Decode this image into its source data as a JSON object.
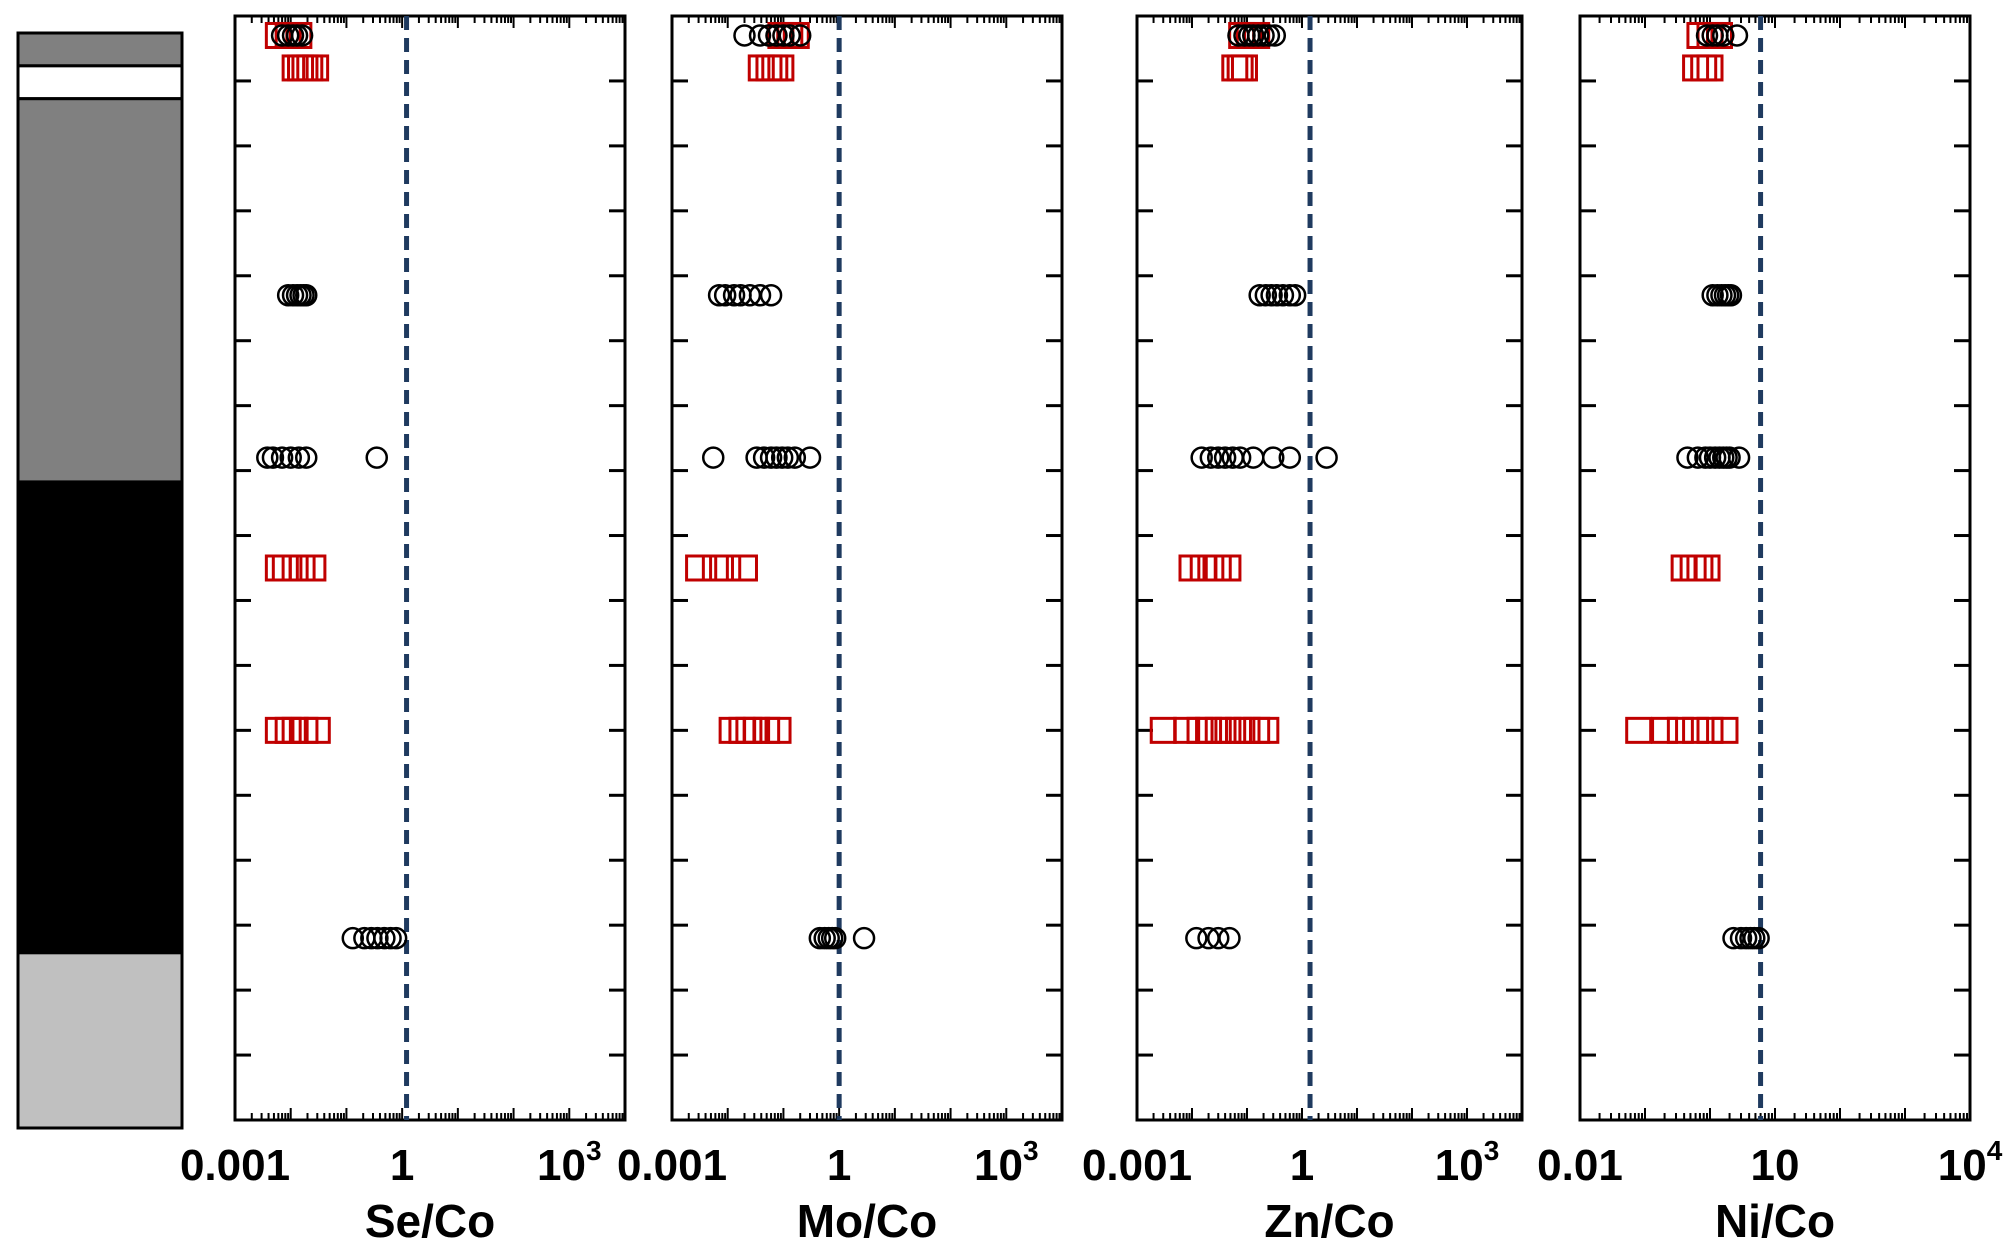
{
  "colors": {
    "circle_stroke": "#000000",
    "square_stroke": "#c00000",
    "reference_line": "#1f3a5f",
    "column_dark_gray": "#808080",
    "column_black": "#000000",
    "column_light_gray": "#c0c0c0",
    "column_white": "#ffffff"
  },
  "stratigraphic_column": {
    "layers": [
      {
        "fill": "#808080",
        "top": 0.0,
        "bottom": 0.03
      },
      {
        "fill": "#ffffff",
        "top": 0.03,
        "bottom": 0.06
      },
      {
        "fill": "#808080",
        "top": 0.06,
        "bottom": 0.41
      },
      {
        "fill": "#000000",
        "top": 0.41,
        "bottom": 0.84
      },
      {
        "fill": "#c0c0c0",
        "top": 0.84,
        "bottom": 1.0
      }
    ]
  },
  "chart_data": [
    {
      "type": "scatter",
      "xlabel": "Se/Co",
      "x_scale": "log",
      "xlim": [
        0.001,
        10000
      ],
      "ylim": [
        0,
        17
      ],
      "y_inverted": true,
      "reference_line_x": 1.2,
      "tick_labels": [
        {
          "x": 0.001,
          "base": "0.001",
          "exp": ""
        },
        {
          "x": 1,
          "base": "1",
          "exp": ""
        },
        {
          "x": 1000,
          "base": "10",
          "exp": "3"
        }
      ],
      "series": [
        {
          "marker": "square",
          "points": [
            [
              0.006,
              0.3
            ],
            [
              0.009,
              0.3
            ],
            [
              0.014,
              0.3
            ],
            [
              0.012,
              0.8
            ],
            [
              0.015,
              0.8
            ],
            [
              0.018,
              0.8
            ],
            [
              0.022,
              0.8
            ],
            [
              0.028,
              0.8
            ],
            [
              0.006,
              8.5
            ],
            [
              0.008,
              8.5
            ],
            [
              0.012,
              8.5
            ],
            [
              0.016,
              8.5
            ],
            [
              0.025,
              8.5
            ],
            [
              0.006,
              11.0
            ],
            [
              0.009,
              11.0
            ],
            [
              0.012,
              11.0
            ],
            [
              0.018,
              11.0
            ],
            [
              0.03,
              11.0
            ]
          ]
        },
        {
          "marker": "circle",
          "points": [
            [
              0.007,
              0.3
            ],
            [
              0.009,
              0.3
            ],
            [
              0.011,
              0.3
            ],
            [
              0.013,
              0.3
            ],
            [
              0.016,
              0.3
            ],
            [
              0.009,
              4.3
            ],
            [
              0.011,
              4.3
            ],
            [
              0.013,
              4.3
            ],
            [
              0.015,
              4.3
            ],
            [
              0.017,
              4.3
            ],
            [
              0.019,
              4.3
            ],
            [
              0.0038,
              6.8
            ],
            [
              0.0048,
              6.8
            ],
            [
              0.007,
              6.8
            ],
            [
              0.01,
              6.8
            ],
            [
              0.014,
              6.8
            ],
            [
              0.019,
              6.8
            ],
            [
              0.35,
              6.8
            ],
            [
              0.13,
              14.2
            ],
            [
              0.21,
              14.2
            ],
            [
              0.28,
              14.2
            ],
            [
              0.36,
              14.2
            ],
            [
              0.48,
              14.2
            ],
            [
              0.62,
              14.2
            ],
            [
              0.78,
              14.2
            ]
          ]
        }
      ]
    },
    {
      "type": "scatter",
      "xlabel": "Mo/Co",
      "x_scale": "log",
      "xlim": [
        0.001,
        10000
      ],
      "ylim": [
        0,
        17
      ],
      "y_inverted": true,
      "reference_line_x": 1.0,
      "tick_labels": [
        {
          "x": 0.001,
          "base": "0.001",
          "exp": ""
        },
        {
          "x": 1,
          "base": "1",
          "exp": ""
        },
        {
          "x": 1000,
          "base": "10",
          "exp": "3"
        }
      ],
      "series": [
        {
          "marker": "square",
          "points": [
            [
              0.09,
              0.3
            ],
            [
              0.13,
              0.3
            ],
            [
              0.17,
              0.3
            ],
            [
              0.04,
              0.8
            ],
            [
              0.055,
              0.8
            ],
            [
              0.07,
              0.8
            ],
            [
              0.09,
              0.8
            ],
            [
              0.003,
              8.5
            ],
            [
              0.006,
              8.5
            ],
            [
              0.01,
              8.5
            ],
            [
              0.02,
              8.5
            ],
            [
              0.012,
              11.0
            ],
            [
              0.018,
              11.0
            ],
            [
              0.024,
              11.0
            ],
            [
              0.033,
              11.0
            ],
            [
              0.05,
              11.0
            ],
            [
              0.08,
              11.0
            ]
          ]
        },
        {
          "marker": "circle",
          "points": [
            [
              0.02,
              0.3
            ],
            [
              0.038,
              0.3
            ],
            [
              0.055,
              0.3
            ],
            [
              0.075,
              0.3
            ],
            [
              0.1,
              0.3
            ],
            [
              0.13,
              0.3
            ],
            [
              0.2,
              0.3
            ],
            [
              0.007,
              4.3
            ],
            [
              0.009,
              4.3
            ],
            [
              0.013,
              4.3
            ],
            [
              0.017,
              4.3
            ],
            [
              0.025,
              4.3
            ],
            [
              0.038,
              4.3
            ],
            [
              0.06,
              4.3
            ],
            [
              0.0055,
              6.8
            ],
            [
              0.033,
              6.8
            ],
            [
              0.045,
              6.8
            ],
            [
              0.06,
              6.8
            ],
            [
              0.075,
              6.8
            ],
            [
              0.095,
              6.8
            ],
            [
              0.12,
              6.8
            ],
            [
              0.16,
              6.8
            ],
            [
              0.3,
              6.8
            ],
            [
              0.45,
              14.2
            ],
            [
              0.55,
              14.2
            ],
            [
              0.65,
              14.2
            ],
            [
              0.75,
              14.2
            ],
            [
              0.85,
              14.2
            ],
            [
              2.8,
              14.2
            ]
          ]
        }
      ]
    },
    {
      "type": "scatter",
      "xlabel": "Zn/Co",
      "x_scale": "log",
      "xlim": [
        0.001,
        10000
      ],
      "ylim": [
        0,
        17
      ],
      "y_inverted": true,
      "reference_line_x": 1.4,
      "tick_labels": [
        {
          "x": 0.001,
          "base": "0.001",
          "exp": ""
        },
        {
          "x": 1,
          "base": "1",
          "exp": ""
        },
        {
          "x": 1000,
          "base": "10",
          "exp": "3"
        }
      ],
      "series": [
        {
          "marker": "square",
          "points": [
            [
              0.08,
              0.3
            ],
            [
              0.11,
              0.3
            ],
            [
              0.15,
              0.3
            ],
            [
              0.06,
              0.8
            ],
            [
              0.075,
              0.8
            ],
            [
              0.09,
              0.8
            ],
            [
              0.01,
              8.5
            ],
            [
              0.016,
              8.5
            ],
            [
              0.022,
              8.5
            ],
            [
              0.03,
              8.5
            ],
            [
              0.045,
              8.5
            ],
            [
              0.003,
              11.0
            ],
            [
              0.008,
              11.0
            ],
            [
              0.014,
              11.0
            ],
            [
              0.02,
              11.0
            ],
            [
              0.03,
              11.0
            ],
            [
              0.045,
              11.0
            ],
            [
              0.07,
              11.0
            ],
            [
              0.1,
              11.0
            ],
            [
              0.15,
              11.0
            ],
            [
              0.22,
              11.0
            ]
          ]
        },
        {
          "marker": "circle",
          "points": [
            [
              0.07,
              0.3
            ],
            [
              0.09,
              0.3
            ],
            [
              0.11,
              0.3
            ],
            [
              0.13,
              0.3
            ],
            [
              0.16,
              0.3
            ],
            [
              0.2,
              0.3
            ],
            [
              0.25,
              0.3
            ],
            [
              0.32,
              0.3
            ],
            [
              0.17,
              4.3
            ],
            [
              0.22,
              4.3
            ],
            [
              0.28,
              4.3
            ],
            [
              0.35,
              4.3
            ],
            [
              0.45,
              4.3
            ],
            [
              0.6,
              4.3
            ],
            [
              0.75,
              4.3
            ],
            [
              0.015,
              6.8
            ],
            [
              0.022,
              6.8
            ],
            [
              0.03,
              6.8
            ],
            [
              0.04,
              6.8
            ],
            [
              0.055,
              6.8
            ],
            [
              0.075,
              6.8
            ],
            [
              0.13,
              6.8
            ],
            [
              0.3,
              6.8
            ],
            [
              0.6,
              6.8
            ],
            [
              2.8,
              6.8
            ],
            [
              0.012,
              14.2
            ],
            [
              0.02,
              14.2
            ],
            [
              0.03,
              14.2
            ],
            [
              0.048,
              14.2
            ]
          ]
        }
      ]
    },
    {
      "type": "scatter",
      "xlabel": "Ni/Co",
      "x_scale": "log",
      "xlim": [
        0.01,
        10000
      ],
      "ylim": [
        0,
        17
      ],
      "y_inverted": true,
      "reference_line_x": 6.0,
      "tick_labels": [
        {
          "x": 0.01,
          "base": "0.01",
          "exp": ""
        },
        {
          "x": 10,
          "base": "10",
          "exp": ""
        },
        {
          "x": 10000,
          "base": "10",
          "exp": "4"
        }
      ],
      "series": [
        {
          "marker": "square",
          "points": [
            [
              0.7,
              0.3
            ],
            [
              1.0,
              0.3
            ],
            [
              1.4,
              0.3
            ],
            [
              0.6,
              0.8
            ],
            [
              0.8,
              0.8
            ],
            [
              1.0,
              0.8
            ],
            [
              0.4,
              8.5
            ],
            [
              0.55,
              8.5
            ],
            [
              0.7,
              8.5
            ],
            [
              0.9,
              8.5
            ],
            [
              0.08,
              11.0
            ],
            [
              0.2,
              11.0
            ],
            [
              0.35,
              11.0
            ],
            [
              0.6,
              11.0
            ],
            [
              1.0,
              11.0
            ],
            [
              1.7,
              11.0
            ]
          ]
        },
        {
          "marker": "circle",
          "points": [
            [
              0.9,
              0.3
            ],
            [
              1.1,
              0.3
            ],
            [
              1.3,
              0.3
            ],
            [
              1.6,
              0.3
            ],
            [
              2.6,
              0.3
            ],
            [
              1.1,
              4.3
            ],
            [
              1.3,
              4.3
            ],
            [
              1.5,
              4.3
            ],
            [
              1.7,
              4.3
            ],
            [
              1.9,
              4.3
            ],
            [
              2.1,
              4.3
            ],
            [
              0.45,
              6.8
            ],
            [
              0.65,
              6.8
            ],
            [
              0.85,
              6.8
            ],
            [
              1.0,
              6.8
            ],
            [
              1.2,
              6.8
            ],
            [
              1.4,
              6.8
            ],
            [
              1.6,
              6.8
            ],
            [
              1.8,
              6.8
            ],
            [
              2.0,
              6.8
            ],
            [
              2.8,
              6.8
            ],
            [
              2.3,
              14.2
            ],
            [
              3.0,
              14.2
            ],
            [
              3.6,
              14.2
            ],
            [
              4.2,
              14.2
            ],
            [
              4.8,
              14.2
            ],
            [
              5.6,
              14.2
            ]
          ]
        }
      ]
    }
  ]
}
